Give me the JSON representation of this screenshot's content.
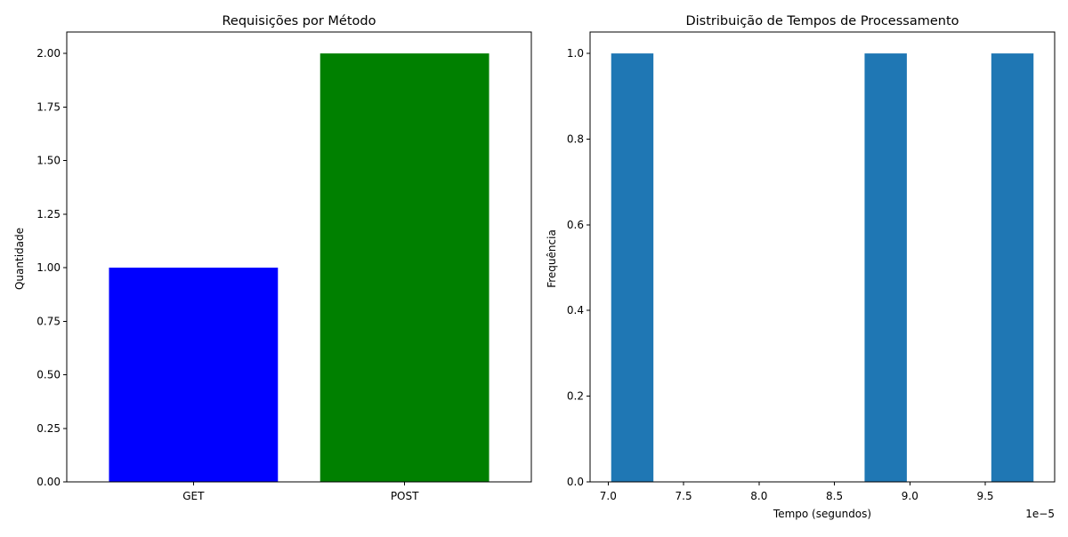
{
  "chart_data": [
    {
      "type": "bar",
      "title": "Requisições por Método",
      "xlabel": "",
      "ylabel": "Quantidade",
      "categories": [
        "GET",
        "POST"
      ],
      "values": [
        1,
        2
      ],
      "colors": [
        "#0000ff",
        "#008000"
      ],
      "ylim": [
        0,
        2.1
      ],
      "yticks": [
        {
          "value": 0,
          "label": "0.00"
        },
        {
          "value": 0.25,
          "label": "0.25"
        },
        {
          "value": 0.5,
          "label": "0.50"
        },
        {
          "value": 0.75,
          "label": "0.75"
        },
        {
          "value": 1,
          "label": "1.00"
        },
        {
          "value": 1.25,
          "label": "1.25"
        },
        {
          "value": 1.5,
          "label": "1.50"
        },
        {
          "value": 1.75,
          "label": "1.75"
        },
        {
          "value": 2,
          "label": "2.00"
        }
      ],
      "grid": false,
      "legend": false
    },
    {
      "type": "bar",
      "subtype": "histogram",
      "title": "Distribuição de Tempos de Processamento",
      "xlabel": "Tempo (segundos)",
      "ylabel": "Frequência",
      "x_scale_label": "1e−5",
      "bin_edges": [
        7.02,
        7.3,
        7.58,
        7.86,
        8.14,
        8.42,
        8.7,
        8.98,
        9.26,
        9.54,
        9.82
      ],
      "counts": [
        1,
        0,
        0,
        0,
        0,
        0,
        1,
        0,
        0,
        1
      ],
      "color": "#1f77b4",
      "xlim": [
        6.88,
        9.96
      ],
      "ylim": [
        0,
        1.05
      ],
      "xticks": [
        {
          "value": 7.0,
          "label": "7.0"
        },
        {
          "value": 7.5,
          "label": "7.5"
        },
        {
          "value": 8.0,
          "label": "8.0"
        },
        {
          "value": 8.5,
          "label": "8.5"
        },
        {
          "value": 9.0,
          "label": "9.0"
        },
        {
          "value": 9.5,
          "label": "9.5"
        }
      ],
      "yticks": [
        {
          "value": 0,
          "label": "0.0"
        },
        {
          "value": 0.2,
          "label": "0.2"
        },
        {
          "value": 0.4,
          "label": "0.4"
        },
        {
          "value": 0.6,
          "label": "0.6"
        },
        {
          "value": 0.8,
          "label": "0.8"
        },
        {
          "value": 1.0,
          "label": "1.0"
        }
      ],
      "grid": false,
      "legend": false
    }
  ]
}
